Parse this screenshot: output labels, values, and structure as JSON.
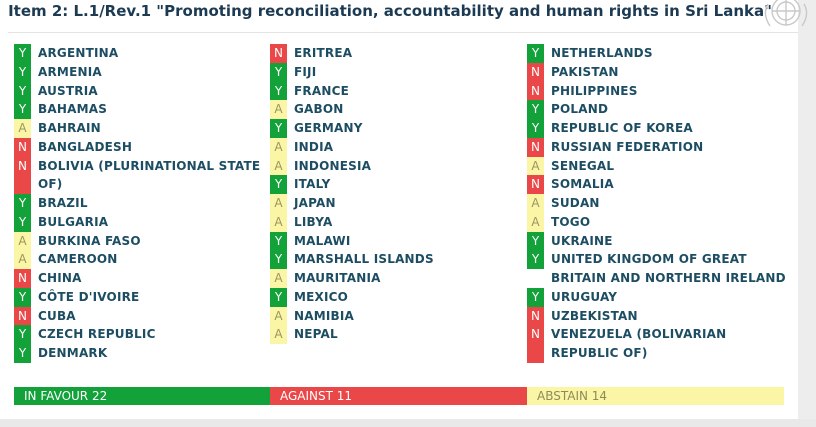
{
  "title": "Item 2: L.1/Rev.1 \"Promoting reconciliation, accountability and human rights in Sri Lanka\"",
  "columns": [
    [
      {
        "vote": "Y",
        "name": "ARGENTINA"
      },
      {
        "vote": "Y",
        "name": "ARMENIA"
      },
      {
        "vote": "Y",
        "name": "AUSTRIA"
      },
      {
        "vote": "Y",
        "name": "BAHAMAS"
      },
      {
        "vote": "A",
        "name": "BAHRAIN"
      },
      {
        "vote": "N",
        "name": "BANGLADESH"
      },
      {
        "vote": "N",
        "name": "BOLIVIA (PLURINATIONAL STATE"
      },
      {
        "vote": "",
        "name": "OF)",
        "cont": "N"
      },
      {
        "vote": "Y",
        "name": "BRAZIL"
      },
      {
        "vote": "Y",
        "name": "BULGARIA"
      },
      {
        "vote": "A",
        "name": "BURKINA FASO"
      },
      {
        "vote": "A",
        "name": "CAMEROON"
      },
      {
        "vote": "N",
        "name": "CHINA"
      },
      {
        "vote": "Y",
        "name": "CÔTE D'IVOIRE"
      },
      {
        "vote": "N",
        "name": "CUBA"
      },
      {
        "vote": "Y",
        "name": "CZECH REPUBLIC"
      },
      {
        "vote": "Y",
        "name": "DENMARK"
      }
    ],
    [
      {
        "vote": "N",
        "name": "ERITREA"
      },
      {
        "vote": "Y",
        "name": "FIJI"
      },
      {
        "vote": "Y",
        "name": "FRANCE"
      },
      {
        "vote": "A",
        "name": "GABON"
      },
      {
        "vote": "Y",
        "name": "GERMANY"
      },
      {
        "vote": "A",
        "name": "INDIA"
      },
      {
        "vote": "A",
        "name": "INDONESIA"
      },
      {
        "vote": "Y",
        "name": "ITALY"
      },
      {
        "vote": "A",
        "name": "JAPAN"
      },
      {
        "vote": "A",
        "name": "LIBYA"
      },
      {
        "vote": "Y",
        "name": "MALAWI"
      },
      {
        "vote": "Y",
        "name": "MARSHALL ISLANDS"
      },
      {
        "vote": "A",
        "name": "MAURITANIA"
      },
      {
        "vote": "Y",
        "name": "MEXICO"
      },
      {
        "vote": "A",
        "name": "NAMIBIA"
      },
      {
        "vote": "A",
        "name": "NEPAL"
      }
    ],
    [
      {
        "vote": "Y",
        "name": "NETHERLANDS"
      },
      {
        "vote": "N",
        "name": "PAKISTAN"
      },
      {
        "vote": "N",
        "name": "PHILIPPINES"
      },
      {
        "vote": "Y",
        "name": "POLAND"
      },
      {
        "vote": "Y",
        "name": "REPUBLIC OF KOREA"
      },
      {
        "vote": "N",
        "name": "RUSSIAN FEDERATION"
      },
      {
        "vote": "A",
        "name": "SENEGAL"
      },
      {
        "vote": "N",
        "name": "SOMALIA"
      },
      {
        "vote": "A",
        "name": "SUDAN"
      },
      {
        "vote": "A",
        "name": "TOGO"
      },
      {
        "vote": "Y",
        "name": "UKRAINE"
      },
      {
        "vote": "Y",
        "name": "UNITED KINGDOM OF GREAT"
      },
      {
        "vote": "",
        "name": "BRITAIN AND NORTHERN IRELAND",
        "cont": "none"
      },
      {
        "vote": "Y",
        "name": "URUGUAY"
      },
      {
        "vote": "N",
        "name": "UZBEKISTAN"
      },
      {
        "vote": "N",
        "name": "VENEZUELA (BOLIVARIAN"
      },
      {
        "vote": "",
        "name": "REPUBLIC OF)",
        "cont": "N"
      }
    ]
  ],
  "totals": {
    "in_favour": "IN FAVOUR 22",
    "against": "AGAINST 11",
    "abstain": "ABSTAIN 14"
  },
  "colors": {
    "yes": "#13a13a",
    "no": "#e94748",
    "abstain": "#fbf6a6",
    "title": "#1c3a52",
    "country": "#1d4d63"
  },
  "icons": {
    "logo": "un-emblem-icon"
  }
}
